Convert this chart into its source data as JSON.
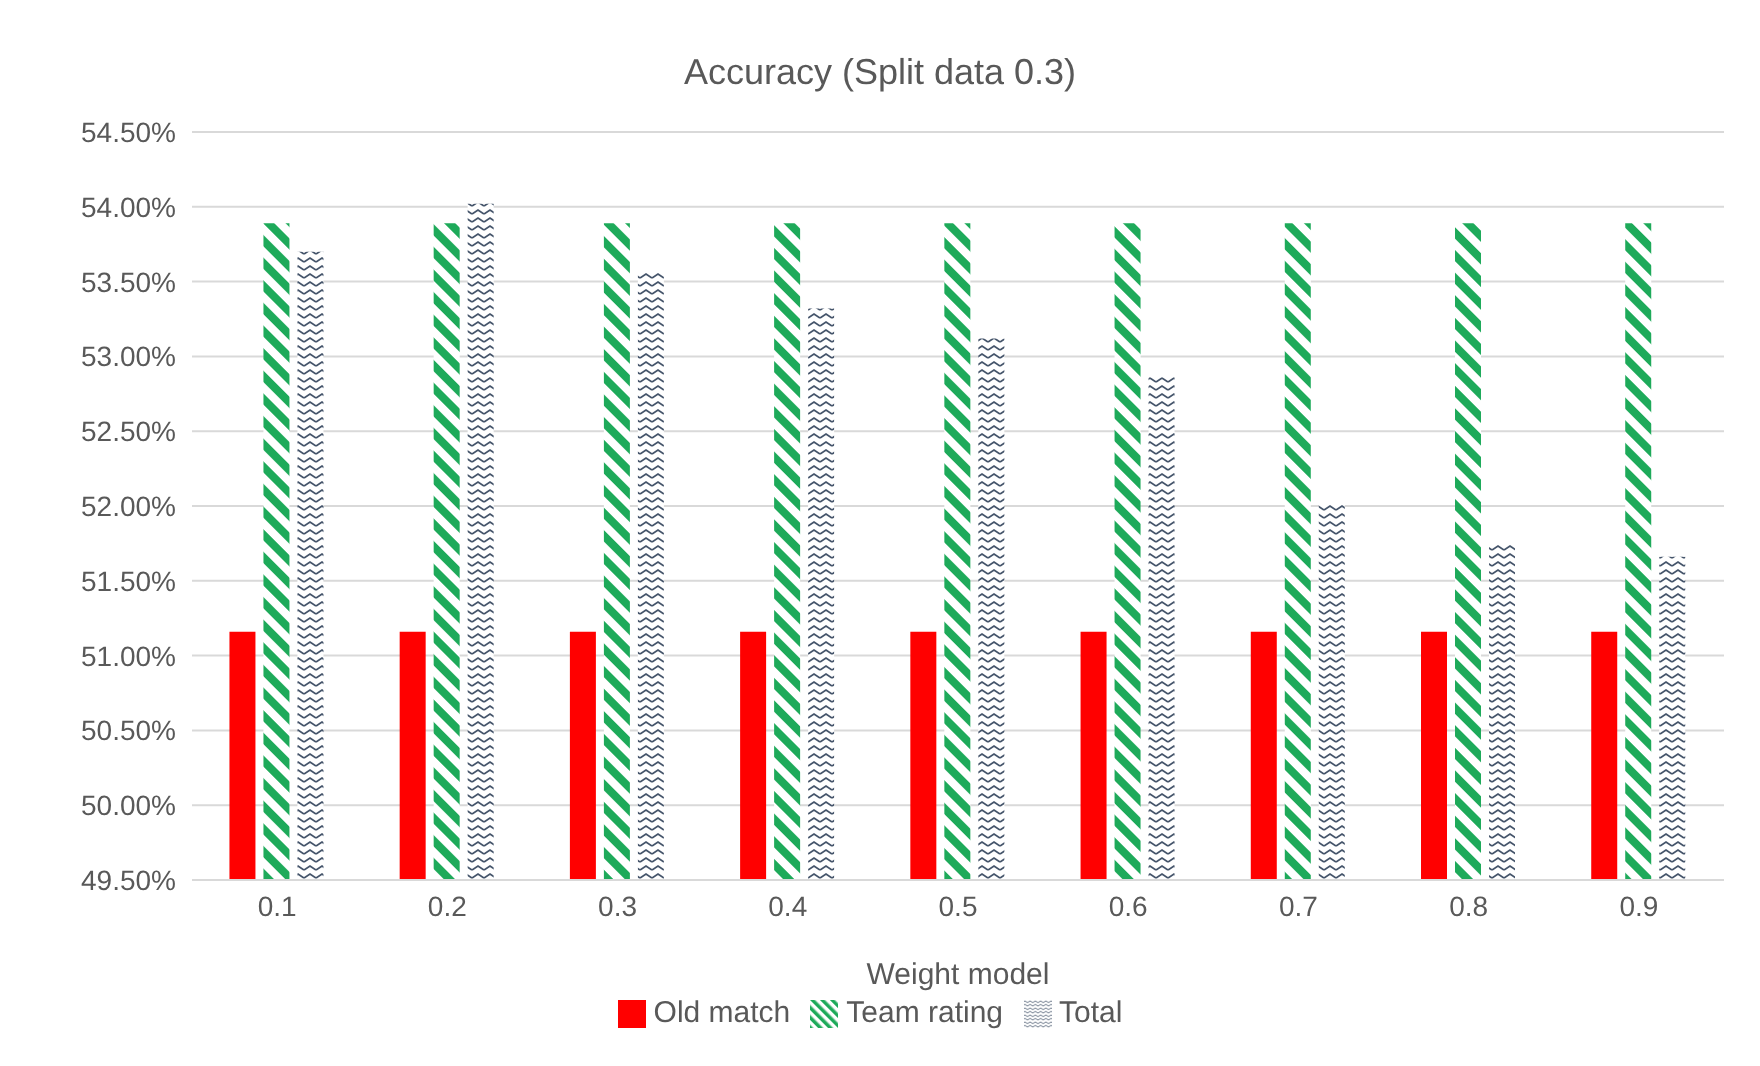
{
  "chart_data": {
    "type": "bar",
    "title": "Accuracy (Split data 0.3)",
    "xlabel": "Weight model",
    "categories": [
      "0.1",
      "0.2",
      "0.3",
      "0.4",
      "0.5",
      "0.6",
      "0.7",
      "0.8",
      "0.9"
    ],
    "series": [
      {
        "name": "Old match",
        "color": "#ff0000",
        "values": [
          51.16,
          51.16,
          51.16,
          51.16,
          51.16,
          51.16,
          51.16,
          51.16,
          51.16
        ]
      },
      {
        "name": "Team rating",
        "color": "#1eaa5a",
        "values": [
          53.89,
          53.89,
          53.89,
          53.89,
          53.89,
          53.89,
          53.89,
          53.89,
          53.89
        ]
      },
      {
        "name": "Total",
        "color": "#44546a",
        "values": [
          53.7,
          54.02,
          53.57,
          53.32,
          53.12,
          52.86,
          52.01,
          51.75,
          51.66
        ]
      }
    ],
    "ylim": [
      49.5,
      54.5
    ],
    "yticks": [
      {
        "value": 49.5,
        "label": "49.50%"
      },
      {
        "value": 50,
        "label": "50.00%"
      },
      {
        "value": 50.5,
        "label": "50.50%"
      },
      {
        "value": 51,
        "label": "51.00%"
      },
      {
        "value": 51.5,
        "label": "51.50%"
      },
      {
        "value": 52,
        "label": "52.00%"
      },
      {
        "value": 52.5,
        "label": "52.50%"
      },
      {
        "value": 53,
        "label": "53.00%"
      },
      {
        "value": 53.5,
        "label": "53.50%"
      },
      {
        "value": 54,
        "label": "54.00%"
      },
      {
        "value": 54.5,
        "label": "54.50%"
      }
    ],
    "grid": "y",
    "legend": "bottom"
  }
}
